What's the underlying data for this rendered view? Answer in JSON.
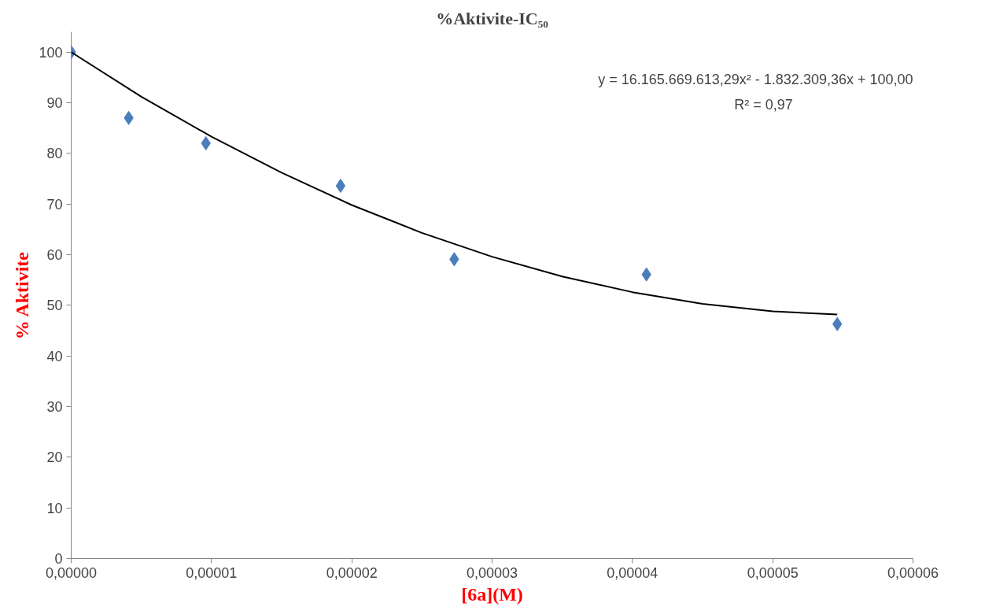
{
  "chart_data": {
    "type": "scatter",
    "title": "%Aktivite-IC₅₀",
    "xlabel": "[6a](M)",
    "ylabel": "% Aktivite",
    "annotations": [
      "y = 16.165.669.613,29x² - 1.832.309,36x + 100,00",
      "R² = 0,97"
    ],
    "series": [
      {
        "color": "#4a7ebb",
        "marker": "diamond",
        "x": [
          0,
          4.1e-06,
          9.6e-06,
          1.92e-05,
          2.73e-05,
          4.1e-05,
          5.46e-05
        ],
        "values": [
          100,
          87.0,
          82.0,
          73.6,
          59.1,
          56.1,
          46.3
        ]
      },
      {
        "type": "line",
        "color": "#000000",
        "marker": "none",
        "x": [
          0,
          5e-06,
          1e-05,
          1.5e-05,
          2e-05,
          2.5e-05,
          3e-05,
          3.5e-05,
          4e-05,
          4.5e-05,
          5e-05,
          5.46e-05
        ],
        "values": [
          100,
          91.2,
          83.3,
          76.2,
          69.8,
          64.3,
          59.6,
          55.7,
          52.6,
          50.3,
          48.8,
          48.2
        ]
      }
    ],
    "xlim": [
      0,
      6e-05
    ],
    "xticks": [
      {
        "value": 0,
        "label": "0,00000"
      },
      {
        "value": 1e-05,
        "label": "0,00001"
      },
      {
        "value": 2e-05,
        "label": "0,00002"
      },
      {
        "value": 3e-05,
        "label": "0,00003"
      },
      {
        "value": 4e-05,
        "label": "0,00004"
      },
      {
        "value": 5e-05,
        "label": "0,00005"
      },
      {
        "value": 6e-05,
        "label": "0,00006"
      }
    ],
    "ylim": [
      0,
      104
    ],
    "yticks": [
      0,
      10,
      20,
      30,
      40,
      50,
      60,
      70,
      80,
      90,
      100
    ],
    "grid": false
  }
}
